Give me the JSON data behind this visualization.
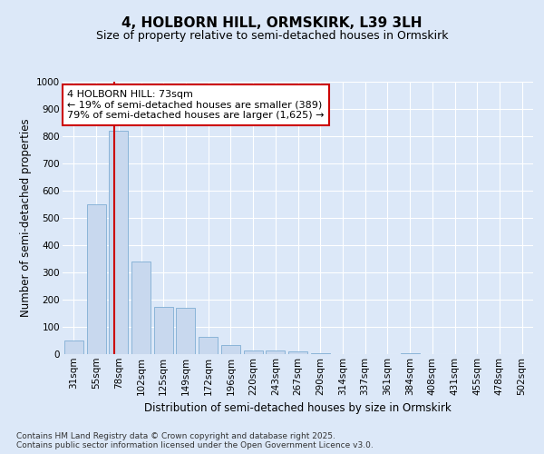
{
  "title_line1": "4, HOLBORN HILL, ORMSKIRK, L39 3LH",
  "title_line2": "Size of property relative to semi-detached houses in Ormskirk",
  "xlabel": "Distribution of semi-detached houses by size in Ormskirk",
  "ylabel": "Number of semi-detached properties",
  "categories": [
    "31sqm",
    "55sqm",
    "78sqm",
    "102sqm",
    "125sqm",
    "149sqm",
    "172sqm",
    "196sqm",
    "220sqm",
    "243sqm",
    "267sqm",
    "290sqm",
    "314sqm",
    "337sqm",
    "361sqm",
    "384sqm",
    "408sqm",
    "431sqm",
    "455sqm",
    "478sqm",
    "502sqm"
  ],
  "values": [
    50,
    550,
    820,
    340,
    175,
    170,
    65,
    35,
    15,
    15,
    10,
    5,
    0,
    0,
    0,
    5,
    0,
    0,
    0,
    0,
    0
  ],
  "bar_color": "#c8d8ee",
  "bar_edge_color": "#7fadd4",
  "vline_x": 1.82,
  "vline_color": "#cc0000",
  "annotation_text": "4 HOLBORN HILL: 73sqm\n← 19% of semi-detached houses are smaller (389)\n79% of semi-detached houses are larger (1,625) →",
  "annotation_box_facecolor": "#ffffff",
  "annotation_box_edgecolor": "#cc0000",
  "ylim": [
    0,
    1000
  ],
  "yticks": [
    0,
    100,
    200,
    300,
    400,
    500,
    600,
    700,
    800,
    900,
    1000
  ],
  "background_color": "#dce8f8",
  "plot_bg_color": "#dce8f8",
  "grid_color": "#ffffff",
  "footer_text": "Contains HM Land Registry data © Crown copyright and database right 2025.\nContains public sector information licensed under the Open Government Licence v3.0.",
  "title_fontsize": 11,
  "subtitle_fontsize": 9,
  "axis_label_fontsize": 8.5,
  "tick_fontsize": 7.5,
  "annotation_fontsize": 8,
  "footer_fontsize": 6.5
}
